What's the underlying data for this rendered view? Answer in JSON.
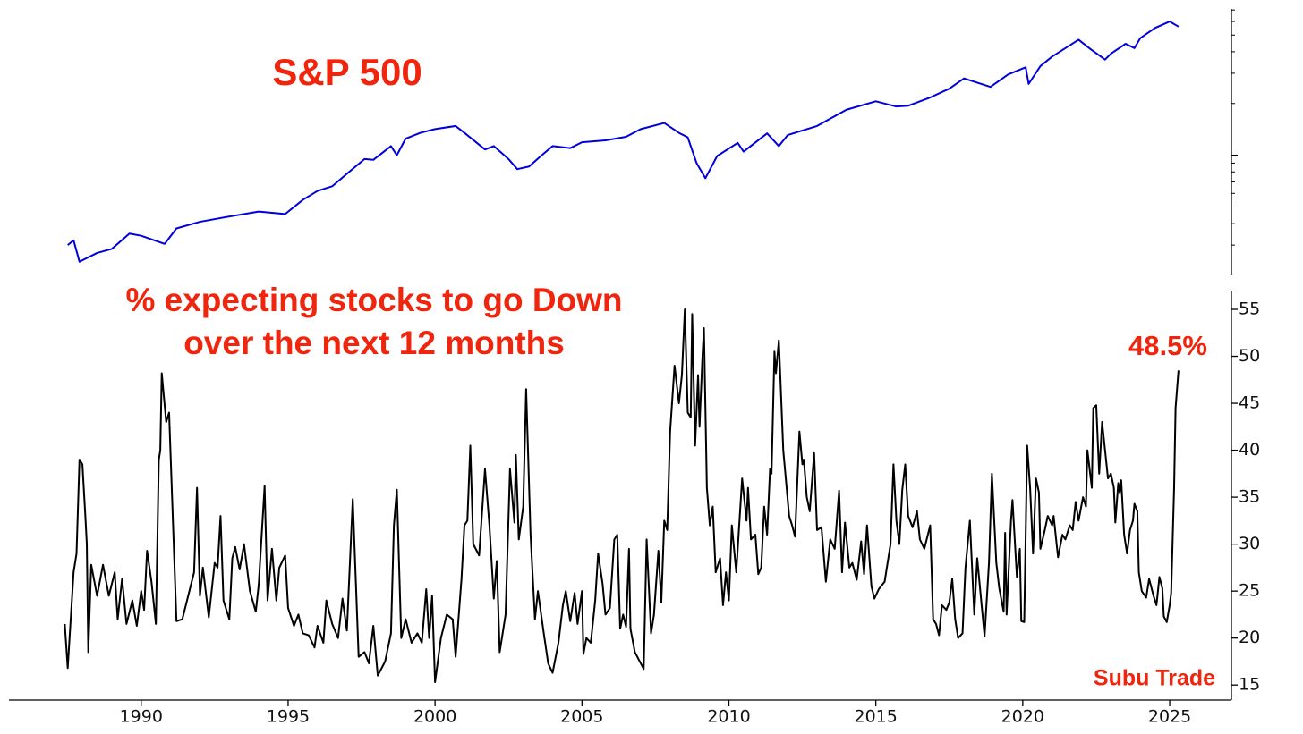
{
  "chart_data": [
    {
      "type": "line",
      "title": "S&P 500",
      "log_scale": true,
      "color": "#0000dd",
      "xlim": [
        1985.5,
        2027.1
      ],
      "ylim": [
        200,
        7100
      ],
      "yticks": [
        1000
      ],
      "minor_yticks": [
        300,
        400,
        500,
        600,
        700,
        800,
        900,
        2000,
        3000,
        4000,
        5000,
        6000,
        7000
      ],
      "x": [
        1987.5,
        1987.7,
        1987.9,
        1988.5,
        1989.0,
        1989.6,
        1990.0,
        1990.8,
        1991.2,
        1992.0,
        1993.0,
        1994.0,
        1994.9,
        1995.5,
        1996.0,
        1996.5,
        1997.0,
        1997.6,
        1997.9,
        1998.5,
        1998.7,
        1999.0,
        1999.5,
        2000.0,
        2000.7,
        2001.0,
        2001.7,
        2002.0,
        2002.5,
        2002.8,
        2003.2,
        2003.6,
        2004.0,
        2004.6,
        2005.0,
        2005.8,
        2006.5,
        2007.0,
        2007.8,
        2008.3,
        2008.6,
        2008.9,
        2009.2,
        2009.6,
        2010.3,
        2010.5,
        2011.3,
        2011.7,
        2012.0,
        2013.0,
        2014.0,
        2015.0,
        2015.7,
        2016.1,
        2016.8,
        2017.5,
        2018.0,
        2018.9,
        2019.5,
        2020.1,
        2020.2,
        2020.6,
        2021.0,
        2021.9,
        2022.3,
        2022.8,
        2023.0,
        2023.5,
        2023.8,
        2024.0,
        2024.5,
        2025.0,
        2025.3
      ],
      "values": [
        300,
        320,
        240,
        270,
        285,
        350,
        340,
        305,
        375,
        410,
        440,
        470,
        455,
        550,
        620,
        660,
        780,
        950,
        940,
        1130,
        1000,
        1250,
        1350,
        1420,
        1480,
        1350,
        1080,
        1130,
        950,
        830,
        860,
        990,
        1130,
        1100,
        1190,
        1220,
        1280,
        1420,
        1540,
        1350,
        1270,
        900,
        735,
        990,
        1180,
        1050,
        1340,
        1130,
        1310,
        1480,
        1840,
        2060,
        1920,
        1940,
        2150,
        2440,
        2800,
        2500,
        2950,
        3250,
        2600,
        3300,
        3750,
        4700,
        4150,
        3600,
        3900,
        4450,
        4200,
        4800,
        5500,
        6000,
        5600
      ]
    },
    {
      "type": "line",
      "title": [
        "% expecting stocks to go Down",
        "over the next 12 months"
      ],
      "annotation": "48.5%",
      "credit": "Subu Trade",
      "color": "#000000",
      "xlim": [
        1985.5,
        2027.1
      ],
      "ylim": [
        13.4,
        57
      ],
      "xticks": [
        1990,
        1995,
        2000,
        2005,
        2010,
        2015,
        2020,
        2025
      ],
      "yticks": [
        15,
        20,
        25,
        30,
        35,
        40,
        45,
        50,
        55
      ],
      "x": [
        1987.4,
        1987.5,
        1987.7,
        1987.8,
        1987.9,
        1988.0,
        1988.1,
        1988.15,
        1988.2,
        1988.3,
        1988.5,
        1988.7,
        1988.9,
        1989.1,
        1989.2,
        1989.35,
        1989.5,
        1989.7,
        1989.85,
        1990.0,
        1990.1,
        1990.2,
        1990.35,
        1990.5,
        1990.6,
        1990.65,
        1990.7,
        1990.85,
        1990.95,
        1991.2,
        1991.4,
        1991.6,
        1991.8,
        1991.9,
        1992.0,
        1992.1,
        1992.3,
        1992.5,
        1992.6,
        1992.7,
        1992.8,
        1993.0,
        1993.1,
        1993.2,
        1993.35,
        1993.5,
        1993.7,
        1993.9,
        1994.0,
        1994.2,
        1994.3,
        1994.45,
        1994.6,
        1994.7,
        1994.9,
        1995.0,
        1995.2,
        1995.35,
        1995.5,
        1995.7,
        1995.9,
        1996.0,
        1996.2,
        1996.3,
        1996.5,
        1996.7,
        1996.85,
        1997.0,
        1997.2,
        1997.4,
        1997.6,
        1997.75,
        1997.9,
        1998.05,
        1998.3,
        1998.5,
        1998.6,
        1998.7,
        1998.85,
        1999.0,
        1999.2,
        1999.4,
        1999.55,
        1999.7,
        1999.8,
        1999.9,
        2000.0,
        2000.2,
        2000.4,
        2000.6,
        2000.7,
        2000.9,
        2001.0,
        2001.1,
        2001.2,
        2001.3,
        2001.5,
        2001.7,
        2001.85,
        2002.0,
        2002.1,
        2002.2,
        2002.4,
        2002.55,
        2002.7,
        2002.75,
        2002.85,
        2003.0,
        2003.1,
        2003.25,
        2003.4,
        2003.5,
        2003.7,
        2003.85,
        2004.0,
        2004.2,
        2004.35,
        2004.45,
        2004.6,
        2004.75,
        2004.85,
        2005.0,
        2005.05,
        2005.15,
        2005.3,
        2005.45,
        2005.55,
        2005.7,
        2005.8,
        2005.95,
        2006.1,
        2006.2,
        2006.3,
        2006.4,
        2006.5,
        2006.6,
        2006.65,
        2006.8,
        2007.1,
        2007.2,
        2007.35,
        2007.45,
        2007.6,
        2007.7,
        2007.8,
        2007.9,
        2008.0,
        2008.15,
        2008.3,
        2008.4,
        2008.5,
        2008.6,
        2008.7,
        2008.75,
        2008.85,
        2008.95,
        2009.0,
        2009.1,
        2009.15,
        2009.25,
        2009.35,
        2009.45,
        2009.55,
        2009.7,
        2009.8,
        2009.9,
        2010.0,
        2010.1,
        2010.25,
        2010.35,
        2010.45,
        2010.6,
        2010.65,
        2010.75,
        2010.9,
        2011.0,
        2011.1,
        2011.2,
        2011.3,
        2011.4,
        2011.45,
        2011.55,
        2011.6,
        2011.7,
        2011.85,
        2012.05,
        2012.15,
        2012.25,
        2012.4,
        2012.5,
        2012.55,
        2012.65,
        2012.75,
        2012.9,
        2013.0,
        2013.15,
        2013.3,
        2013.45,
        2013.6,
        2013.75,
        2013.85,
        2013.95,
        2014.1,
        2014.2,
        2014.35,
        2014.5,
        2014.6,
        2014.7,
        2014.85,
        2014.95,
        2015.1,
        2015.3,
        2015.5,
        2015.6,
        2015.7,
        2015.8,
        2015.9,
        2016.0,
        2016.1,
        2016.25,
        2016.4,
        2016.5,
        2016.65,
        2016.85,
        2016.95,
        2017.05,
        2017.15,
        2017.25,
        2017.4,
        2017.5,
        2017.6,
        2017.7,
        2017.8,
        2017.95,
        2018.05,
        2018.2,
        2018.35,
        2018.45,
        2018.6,
        2018.7,
        2018.85,
        2018.95,
        2019.1,
        2019.2,
        2019.35,
        2019.4,
        2019.45,
        2019.6,
        2019.65,
        2019.8,
        2019.9,
        2019.95,
        2020.05,
        2020.15,
        2020.25,
        2020.35,
        2020.45,
        2020.55,
        2020.6,
        2020.75,
        2020.85,
        2021.0,
        2021.05,
        2021.2,
        2021.35,
        2021.45,
        2021.6,
        2021.7,
        2021.8,
        2021.9,
        2022.05,
        2022.15,
        2022.2,
        2022.35,
        2022.4,
        2022.5,
        2022.6,
        2022.7,
        2022.8,
        2022.9,
        2023.0,
        2023.1,
        2023.15,
        2023.25,
        2023.3,
        2023.35,
        2023.45,
        2023.55,
        2023.65,
        2023.75,
        2023.8,
        2023.9,
        2023.95,
        2024.05,
        2024.2,
        2024.3,
        2024.45,
        2024.55,
        2024.65,
        2024.75,
        2024.8,
        2024.9,
        2025.0,
        2025.05,
        2025.15,
        2025.2,
        2025.3
      ],
      "values": [
        21.5,
        16.8,
        27,
        29,
        39,
        38.5,
        33,
        30,
        18.5,
        27.8,
        24.5,
        27.8,
        24.5,
        27,
        22,
        26.3,
        21.5,
        24,
        21.3,
        25,
        23,
        29.3,
        26,
        21.5,
        39,
        40,
        48.2,
        43,
        44,
        21.8,
        22,
        24.5,
        27,
        36,
        24.5,
        27.5,
        22.2,
        28,
        27.5,
        33,
        24,
        22,
        28.5,
        29.7,
        27.3,
        30,
        25,
        22.8,
        25.7,
        36.2,
        24,
        29.5,
        24,
        27.5,
        28.8,
        23.2,
        21.3,
        22.5,
        20.5,
        20.3,
        19,
        21.3,
        19.5,
        24,
        21.5,
        20,
        24.2,
        20.8,
        34.8,
        18,
        18.5,
        17.3,
        21.3,
        16,
        17.5,
        20.5,
        32,
        35.8,
        20,
        22,
        19.5,
        20.5,
        19.5,
        25.2,
        20,
        24.5,
        15.3,
        20,
        22.5,
        22,
        18,
        26.3,
        32,
        32.5,
        40.5,
        30,
        28.8,
        38,
        32,
        24.2,
        28.2,
        18.5,
        22.5,
        38,
        32.3,
        39.5,
        30.5,
        34,
        46.5,
        31,
        22,
        25,
        20.5,
        17.3,
        16.3,
        19.5,
        23.5,
        25,
        21.8,
        24.8,
        21.5,
        25,
        18.3,
        20,
        19.5,
        24,
        29,
        25.8,
        22.5,
        23.2,
        30.5,
        31,
        21,
        22.5,
        21.2,
        29.5,
        21,
        18.5,
        16.7,
        30.5,
        20.5,
        22.5,
        29.3,
        23.8,
        32.5,
        31.5,
        42,
        49,
        45,
        48,
        55,
        44,
        43.5,
        54.5,
        40.5,
        48,
        42.5,
        50,
        53,
        36,
        32,
        34,
        27,
        28.5,
        23.5,
        27,
        24,
        32,
        27,
        32,
        37,
        32.5,
        36,
        30.5,
        31,
        26.8,
        27.5,
        34,
        31,
        38,
        37.5,
        50.5,
        48.2,
        51.7,
        40,
        33,
        32,
        30.8,
        42,
        38.5,
        39,
        35,
        33.5,
        39.7,
        31.5,
        31.8,
        26,
        30.5,
        29.5,
        35.7,
        27,
        32.3,
        27.5,
        28,
        26.2,
        30.3,
        26.8,
        32,
        25.5,
        24.2,
        25.2,
        26,
        30,
        38.5,
        32.5,
        30,
        35.8,
        38.5,
        33,
        31.8,
        33.5,
        30.5,
        29.5,
        32,
        22,
        21.5,
        20.3,
        23.5,
        23,
        23.8,
        26.3,
        22,
        20,
        20.5,
        27.5,
        32.5,
        22.5,
        28.5,
        23.5,
        20.2,
        28,
        37.5,
        28,
        25.3,
        22.8,
        31.2,
        22.5,
        32.5,
        34.7,
        26.5,
        29.5,
        21.8,
        21.7,
        40.5,
        36,
        29,
        37,
        35.5,
        29.5,
        31.5,
        33,
        32,
        33,
        28.6,
        31,
        30.5,
        32,
        31.5,
        34.5,
        32.5,
        35,
        34,
        40,
        36,
        44.5,
        44.8,
        37.5,
        43,
        40,
        37,
        37.5,
        36,
        32.3,
        36.5,
        35.5,
        36.8,
        31,
        29,
        31.5,
        32.5,
        34.3,
        33.5,
        27,
        25,
        24.3,
        26.3,
        24.5,
        23.5,
        26.5,
        25.3,
        22.3,
        21.7,
        23.5,
        24.8,
        36,
        44.5,
        48.5
      ]
    }
  ]
}
